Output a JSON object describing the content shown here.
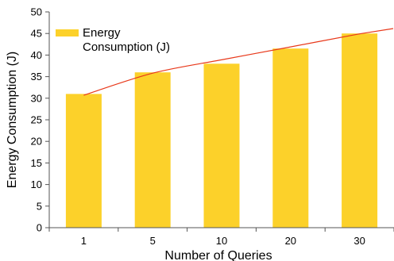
{
  "chart_data": {
    "type": "bar",
    "categories": [
      "1",
      "5",
      "10",
      "20",
      "30"
    ],
    "series": [
      {
        "name": "Energy Consumption (J)",
        "values": [
          31,
          36,
          38,
          41.5,
          45
        ],
        "color": "#fcd12a"
      }
    ],
    "trendline": {
      "values": [
        30.7,
        35.8,
        38.9,
        41.9,
        44.9
      ],
      "color": "#e8381a"
    },
    "xlabel": "Number of Queries",
    "ylabel": "Energy Consumption (J)",
    "ylim": [
      0,
      50
    ],
    "yticks": [
      0,
      5,
      10,
      15,
      20,
      25,
      30,
      35,
      40,
      45,
      50
    ],
    "grid": false,
    "legend": {
      "position": "top-left",
      "lines": [
        "Energy",
        "Consumption (J)"
      ]
    },
    "colors": {
      "bar": "#fcd12a",
      "trendline": "#e8381a",
      "axis": "#555555"
    }
  }
}
